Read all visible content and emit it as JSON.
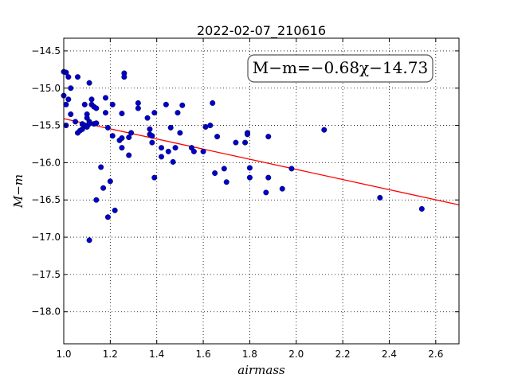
{
  "chart_data": {
    "type": "scatter",
    "title": "2022-02-07_210616",
    "xlabel": "airmass",
    "ylabel": "M−m",
    "xlim": [
      1.0,
      2.7
    ],
    "ylim": [
      -18.43,
      -14.33
    ],
    "y_inverted": true,
    "grid": true,
    "annotation": "M−m=−0.68χ−14.73",
    "xticks": [
      "1.0",
      "1.2",
      "1.4",
      "1.6",
      "1.8",
      "2.0",
      "2.2",
      "2.4",
      "2.6"
    ],
    "yticks": [
      "−14.5",
      "−15.0",
      "−15.5",
      "−16.0",
      "−16.5",
      "−17.0",
      "−17.5",
      "−18.0"
    ],
    "xtick_values": [
      1.0,
      1.2,
      1.4,
      1.6,
      1.8,
      2.0,
      2.2,
      2.4,
      2.6
    ],
    "ytick_values": [
      -14.5,
      -15.0,
      -15.5,
      -16.0,
      -16.5,
      -17.0,
      -17.5,
      -18.0
    ],
    "fit": {
      "slope": -0.68,
      "intercept": -14.73,
      "color": "#ff0000"
    },
    "point_color": "#0000c8",
    "series": [
      {
        "points": [
          [
            1.0,
            -14.78
          ],
          [
            1.01,
            -14.79
          ],
          [
            1.02,
            -14.85
          ],
          [
            1.03,
            -15.0
          ],
          [
            1.0,
            -15.1
          ],
          [
            1.01,
            -15.22
          ],
          [
            1.02,
            -15.15
          ],
          [
            1.03,
            -15.35
          ],
          [
            1.01,
            -15.5
          ],
          [
            1.05,
            -15.45
          ],
          [
            1.06,
            -14.85
          ],
          [
            1.06,
            -15.6
          ],
          [
            1.07,
            -15.57
          ],
          [
            1.08,
            -15.55
          ],
          [
            1.08,
            -15.48
          ],
          [
            1.09,
            -15.5
          ],
          [
            1.09,
            -15.22
          ],
          [
            1.1,
            -15.35
          ],
          [
            1.1,
            -15.4
          ],
          [
            1.1,
            -15.52
          ],
          [
            1.11,
            -15.45
          ],
          [
            1.11,
            -15.48
          ],
          [
            1.11,
            -14.93
          ],
          [
            1.12,
            -15.22
          ],
          [
            1.12,
            -15.15
          ],
          [
            1.13,
            -15.25
          ],
          [
            1.13,
            -15.48
          ],
          [
            1.14,
            -15.47
          ],
          [
            1.14,
            -15.27
          ],
          [
            1.11,
            -17.04
          ],
          [
            1.14,
            -16.5
          ],
          [
            1.16,
            -16.06
          ],
          [
            1.17,
            -16.34
          ],
          [
            1.18,
            -15.13
          ],
          [
            1.18,
            -15.33
          ],
          [
            1.19,
            -15.53
          ],
          [
            1.19,
            -16.73
          ],
          [
            1.2,
            -16.25
          ],
          [
            1.21,
            -15.22
          ],
          [
            1.21,
            -15.64
          ],
          [
            1.22,
            -16.64
          ],
          [
            1.24,
            -15.7
          ],
          [
            1.25,
            -15.34
          ],
          [
            1.25,
            -15.67
          ],
          [
            1.26,
            -14.8
          ],
          [
            1.26,
            -14.85
          ],
          [
            1.25,
            -15.8
          ],
          [
            1.28,
            -15.66
          ],
          [
            1.28,
            -15.9
          ],
          [
            1.29,
            -15.6
          ],
          [
            1.32,
            -15.2
          ],
          [
            1.32,
            -15.27
          ],
          [
            1.36,
            -15.4
          ],
          [
            1.37,
            -15.55
          ],
          [
            1.37,
            -15.62
          ],
          [
            1.38,
            -15.64
          ],
          [
            1.38,
            -15.73
          ],
          [
            1.39,
            -15.33
          ],
          [
            1.39,
            -16.2
          ],
          [
            1.42,
            -15.8
          ],
          [
            1.42,
            -15.92
          ],
          [
            1.44,
            -15.22
          ],
          [
            1.45,
            -15.85
          ],
          [
            1.46,
            -15.53
          ],
          [
            1.47,
            -15.99
          ],
          [
            1.48,
            -15.8
          ],
          [
            1.49,
            -15.33
          ],
          [
            1.5,
            -15.6
          ],
          [
            1.51,
            -15.23
          ],
          [
            1.55,
            -15.8
          ],
          [
            1.56,
            -15.85
          ],
          [
            1.6,
            -15.85
          ],
          [
            1.61,
            -15.52
          ],
          [
            1.63,
            -15.5
          ],
          [
            1.64,
            -15.2
          ],
          [
            1.65,
            -16.14
          ],
          [
            1.66,
            -15.65
          ],
          [
            1.69,
            -16.08
          ],
          [
            1.7,
            -16.26
          ],
          [
            1.74,
            -15.73
          ],
          [
            1.78,
            -15.73
          ],
          [
            1.79,
            -15.6
          ],
          [
            1.79,
            -15.62
          ],
          [
            1.8,
            -16.07
          ],
          [
            1.8,
            -16.2
          ],
          [
            1.87,
            -16.4
          ],
          [
            1.88,
            -16.2
          ],
          [
            1.88,
            -15.65
          ],
          [
            1.94,
            -16.35
          ],
          [
            1.98,
            -16.08
          ],
          [
            2.12,
            -15.56
          ],
          [
            2.36,
            -16.47
          ],
          [
            2.54,
            -16.62
          ]
        ]
      }
    ]
  }
}
